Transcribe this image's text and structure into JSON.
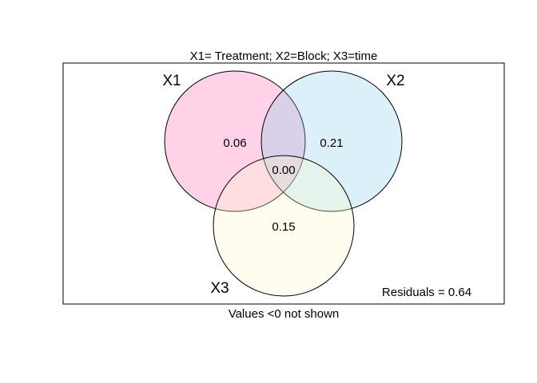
{
  "figure": {
    "title": "X1= Treatment; X2=Block; X3=time",
    "footnote": "Values <0 not shown",
    "residuals": "Residuals = 0.64"
  },
  "sets": [
    {
      "label": "X1",
      "fill": "#ff69b4",
      "opacity": 0.3
    },
    {
      "label": "X2",
      "fill": "#87ceeb",
      "opacity": 0.3
    },
    {
      "label": "X3",
      "fill": "#fffacd",
      "opacity": 0.3
    }
  ],
  "regions": {
    "x1_only": "0.06",
    "x2_only": "0.21",
    "x3_only": "0.15",
    "center": "0.00"
  },
  "colors": {
    "stroke": "#000000",
    "background": "#ffffff"
  }
}
